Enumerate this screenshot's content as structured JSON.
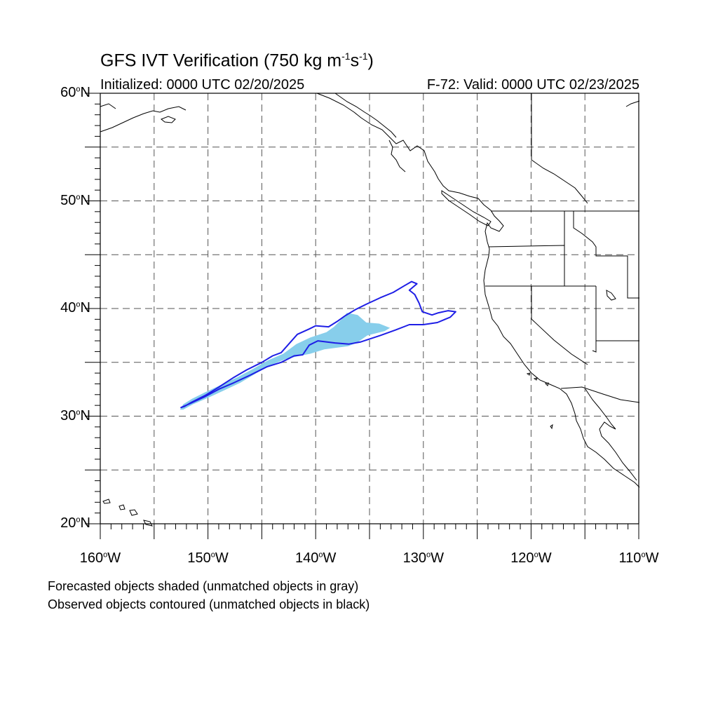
{
  "title": {
    "main": "GFS IVT Verification (750 kg m",
    "exp1": "-1",
    "mid": "s",
    "exp2": "-1",
    "close": ")"
  },
  "subtitle": {
    "initialized": "Initialized: 0000 UTC 02/20/2025",
    "valid": "F-72: Valid: 0000 UTC 02/23/2025"
  },
  "degree_symbol": "o",
  "lat_labels": [
    {
      "value": 60,
      "num": "60",
      "hemi": "N"
    },
    {
      "value": 50,
      "num": "50",
      "hemi": "N"
    },
    {
      "value": 40,
      "num": "40",
      "hemi": "N"
    },
    {
      "value": 30,
      "num": "30",
      "hemi": "N"
    },
    {
      "value": 20,
      "num": "20",
      "hemi": "N"
    }
  ],
  "lon_labels": [
    {
      "value": -160,
      "num": "160",
      "hemi": "W"
    },
    {
      "value": -150,
      "num": "150",
      "hemi": "W"
    },
    {
      "value": -140,
      "num": "140",
      "hemi": "W"
    },
    {
      "value": -130,
      "num": "130",
      "hemi": "W"
    },
    {
      "value": -120,
      "num": "120",
      "hemi": "W"
    },
    {
      "value": -110,
      "num": "110",
      "hemi": "W"
    }
  ],
  "notes": [
    "Forecasted objects shaded (unmatched objects in gray)",
    "Observed objects contoured (unmatched objects in black)"
  ],
  "map": {
    "lon_range": [
      -160,
      -110
    ],
    "lat_range": [
      20,
      60
    ],
    "grid_lon": [
      -155,
      -150,
      -145,
      -140,
      -135,
      -130,
      -125,
      -120,
      -115
    ],
    "grid_lat": [
      25,
      30,
      35,
      40,
      45,
      50,
      55
    ],
    "forecast_fill_color": "#87ceeb",
    "observed_contour_color": "#1e1ee6",
    "coast_color": "#000000"
  },
  "objects": {
    "forecast": [
      [
        -152.6,
        30.6
      ],
      [
        -152.3,
        31.1
      ],
      [
        -151.5,
        31.6
      ],
      [
        -150.3,
        32.2
      ],
      [
        -148.8,
        32.9
      ],
      [
        -147.3,
        33.6
      ],
      [
        -145.8,
        34.4
      ],
      [
        -144.4,
        35.2
      ],
      [
        -143.0,
        35.8
      ],
      [
        -141.8,
        36.7
      ],
      [
        -140.5,
        37.3
      ],
      [
        -139.0,
        37.8
      ],
      [
        -138.3,
        38.3
      ],
      [
        -137.6,
        39.0
      ],
      [
        -137.1,
        39.6
      ],
      [
        -136.1,
        39.4
      ],
      [
        -135.3,
        38.7
      ],
      [
        -134.1,
        38.6
      ],
      [
        -133.1,
        38.2
      ],
      [
        -133.6,
        37.9
      ],
      [
        -135.2,
        37.5
      ],
      [
        -136.2,
        36.8
      ],
      [
        -137.0,
        36.5
      ],
      [
        -139.2,
        36.2
      ],
      [
        -140.5,
        35.8
      ],
      [
        -141.5,
        35.6
      ],
      [
        -142.8,
        35.3
      ],
      [
        -144.0,
        34.8
      ],
      [
        -145.5,
        34.0
      ],
      [
        -147.0,
        33.1
      ],
      [
        -148.5,
        32.4
      ],
      [
        -150.0,
        31.7
      ],
      [
        -151.4,
        31.1
      ],
      [
        -152.3,
        30.6
      ]
    ],
    "observed": [
      [
        -152.2,
        30.9
      ],
      [
        -151.5,
        31.3
      ],
      [
        -150.3,
        31.9
      ],
      [
        -149.0,
        32.7
      ],
      [
        -147.6,
        33.6
      ],
      [
        -146.4,
        34.3
      ],
      [
        -145.0,
        35.0
      ],
      [
        -144.0,
        35.6
      ],
      [
        -143.2,
        35.9
      ],
      [
        -142.5,
        36.7
      ],
      [
        -141.7,
        37.6
      ],
      [
        -140.6,
        38.1
      ],
      [
        -140.0,
        38.4
      ],
      [
        -138.8,
        38.3
      ],
      [
        -138.0,
        38.8
      ],
      [
        -137.3,
        39.3
      ],
      [
        -136.3,
        39.9
      ],
      [
        -135.3,
        40.4
      ],
      [
        -134.0,
        41.0
      ],
      [
        -132.8,
        41.5
      ],
      [
        -131.8,
        42.1
      ],
      [
        -131.1,
        42.5
      ],
      [
        -130.6,
        42.3
      ],
      [
        -131.3,
        41.7
      ],
      [
        -130.8,
        41.3
      ],
      [
        -130.4,
        40.5
      ],
      [
        -130.1,
        39.7
      ],
      [
        -129.2,
        39.4
      ],
      [
        -128.6,
        39.6
      ],
      [
        -127.7,
        39.8
      ],
      [
        -127.0,
        39.7
      ],
      [
        -127.5,
        39.2
      ],
      [
        -128.7,
        38.7
      ],
      [
        -130.0,
        38.5
      ],
      [
        -131.3,
        38.5
      ],
      [
        -132.6,
        38.0
      ],
      [
        -134.0,
        37.5
      ],
      [
        -135.8,
        36.9
      ],
      [
        -136.9,
        36.7
      ],
      [
        -138.2,
        36.8
      ],
      [
        -139.8,
        37.0
      ],
      [
        -140.6,
        36.6
      ],
      [
        -141.2,
        35.7
      ],
      [
        -142.0,
        35.6
      ],
      [
        -143.2,
        35.0
      ],
      [
        -144.5,
        34.6
      ],
      [
        -146.1,
        33.8
      ],
      [
        -147.6,
        33.1
      ],
      [
        -149.0,
        32.5
      ],
      [
        -150.3,
        31.8
      ],
      [
        -151.6,
        31.2
      ],
      [
        -152.5,
        30.8
      ]
    ]
  }
}
